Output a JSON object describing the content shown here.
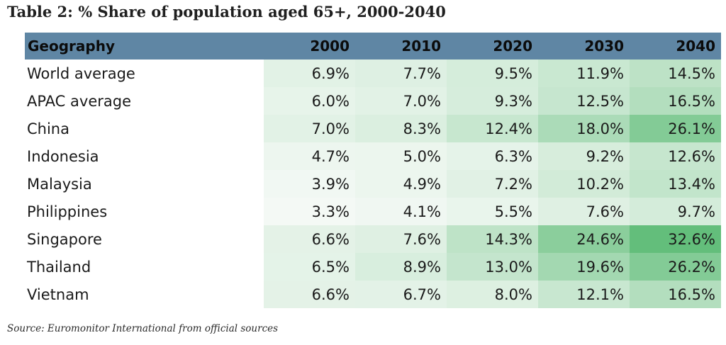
{
  "title": "Table 2: % Share of population aged 65+, 2000-2040",
  "source": "Source: Euromonitor International from official sources",
  "colors": {
    "header_bg": "#5f86a4",
    "low_cell": "#f4f9f5",
    "high_cell": "#63be7b"
  },
  "chart_data": {
    "type": "table",
    "title": "Table 2: % Share of population aged 65+, 2000-2040",
    "columns": [
      "Geography",
      "2000",
      "2010",
      "2020",
      "2030",
      "2040"
    ],
    "rows": [
      {
        "geography": "World average",
        "values": [
          "6.9%",
          "7.7%",
          "9.5%",
          "11.9%",
          "14.5%"
        ]
      },
      {
        "geography": "APAC average",
        "values": [
          "6.0%",
          "7.0%",
          "9.3%",
          "12.5%",
          "16.5%"
        ]
      },
      {
        "geography": "China",
        "values": [
          "7.0%",
          "8.3%",
          "12.4%",
          "18.0%",
          "26.1%"
        ]
      },
      {
        "geography": "Indonesia",
        "values": [
          "4.7%",
          "5.0%",
          "6.3%",
          "9.2%",
          "12.6%"
        ]
      },
      {
        "geography": "Malaysia",
        "values": [
          "3.9%",
          "4.9%",
          "7.2%",
          "10.2%",
          "13.4%"
        ]
      },
      {
        "geography": "Philippines",
        "values": [
          "3.3%",
          "4.1%",
          "5.5%",
          "7.6%",
          "9.7%"
        ]
      },
      {
        "geography": "Singapore",
        "values": [
          "6.6%",
          "7.6%",
          "14.3%",
          "24.6%",
          "32.6%"
        ]
      },
      {
        "geography": "Thailand",
        "values": [
          "6.5%",
          "8.9%",
          "13.0%",
          "19.6%",
          "26.2%"
        ]
      },
      {
        "geography": "Vietnam",
        "values": [
          "6.6%",
          "6.7%",
          "8.0%",
          "12.1%",
          "16.5%"
        ]
      }
    ],
    "color_scale": {
      "min": 3.3,
      "max": 32.6
    }
  }
}
